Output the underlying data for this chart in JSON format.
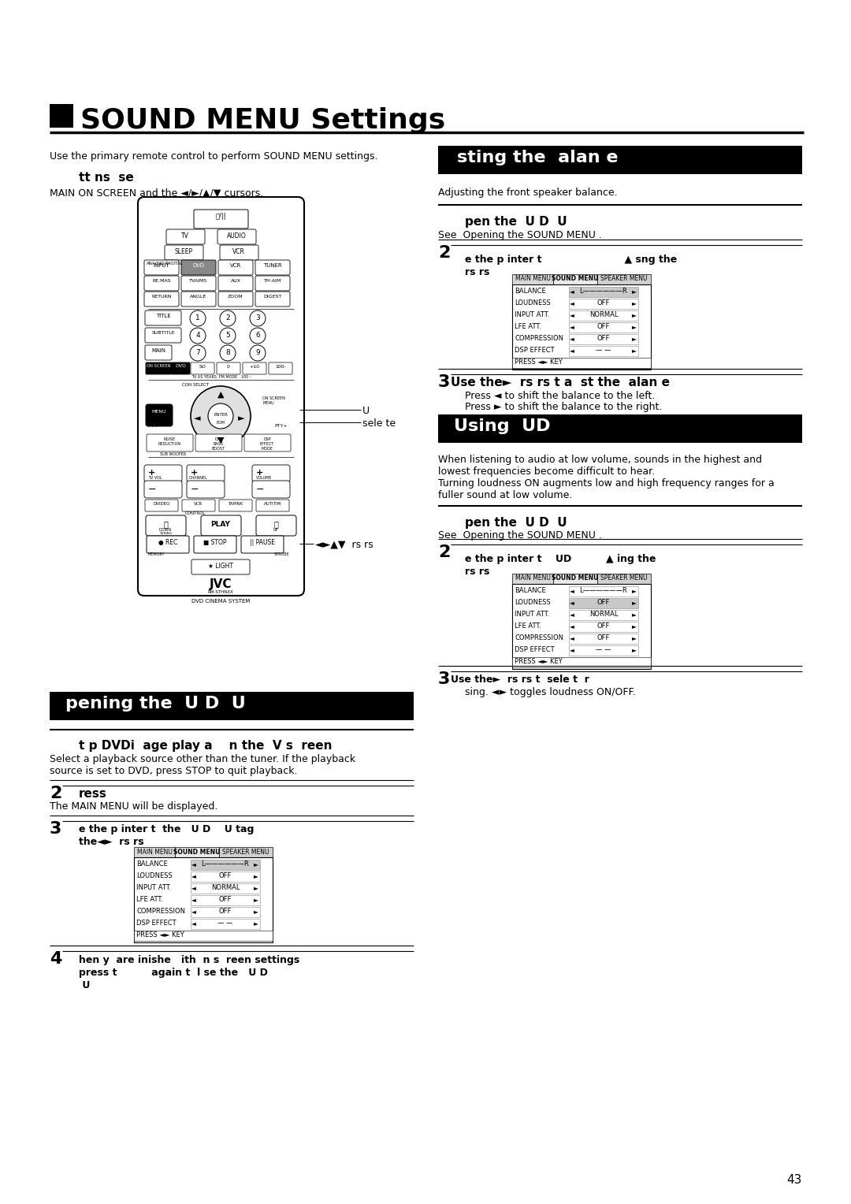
{
  "page_bg": "#ffffff",
  "title_text": "SOUND MENU Settings",
  "page_number": "43",
  "section_adj": "sting the  alan e",
  "section_loud": "Using  UD",
  "section_open": "pening the  U D  U",
  "intro_text": "Use the primary remote control to perform SOUND MENU settings.",
  "left_col_header": "tt ns  se",
  "left_col_sub": "MAIN ON SCREEN and the ◄/►/▲/▼ cursors.",
  "adjust_desc": "Adjusting the front speaker balance.",
  "open1_header": "pen the  U D  U",
  "open1_sub": "See  Opening the SOUND MENU .",
  "step2a_line1": "e the p inter t                        ▲ sng the",
  "step2a_line2": "rs rs",
  "step3a_line1": "Use the►  rs rs t a  st the  alan e",
  "step3a_sub1": "Press ◄ to shift the balance to the left.",
  "step3a_sub2": "Press ► to shift the balance to the right.",
  "loud_desc1": "When listening to audio at low volume, sounds in the highest and",
  "loud_desc2": "lowest frequencies become difficult to hear.",
  "loud_desc3": "Turning loudness ON augments low and high frequency ranges for a",
  "loud_desc4": "fuller sound at low volume.",
  "open2_header": "pen the  U D  U",
  "open2_sub": "See  Opening the SOUND MENU .",
  "step2b_line1": "e the p inter t    UD          ▲ ing the",
  "step2b_line2": "rs rs",
  "step3b_line1": "Use the►  rs rs t  sele t  r",
  "step3b_sub": "sing. ◄► toggles loudness ON/OFF.",
  "open_hdr": "pening the  U D  U",
  "open_s1_bold": "t p DVDi  age play a    n the  V s  reen",
  "open_s1_sub1": "Select a playback source other than the tuner. If the playback",
  "open_s1_sub2": "source is set to DVD, press STOP to quit playback.",
  "open_s2_bold": "ress",
  "open_s2_sub": "The MAIN MENU will be displayed.",
  "open_s3_bold1": "e the p inter t  the   U D    U tag",
  "open_s3_bold2": "the◄►  rs rs",
  "open_s4_line1": "hen y  are inishe   ith  n s  reen settings",
  "open_s4_line2": "press t          again t  l se the   U D",
  "open_s4_line3": " U",
  "menu_rows": [
    "BALANCE",
    "LOUDNESS",
    "INPUT ATT.",
    "LFE ATT.",
    "COMPRESSION",
    "DSP EFFECT"
  ],
  "menu_vals": [
    "L——————R",
    "OFF",
    "NORMAL",
    "OFF",
    "OFF",
    "— —"
  ],
  "menu_tabs": [
    "MAIN MENU",
    "SOUND MENU",
    "SPEAKER MENU"
  ],
  "menu_footer": "PRESS ◄► KEY",
  "remote_label_u": "U",
  "remote_label_sel": "sele te",
  "remote_label_curs": "◄►▲▼  rs rs"
}
